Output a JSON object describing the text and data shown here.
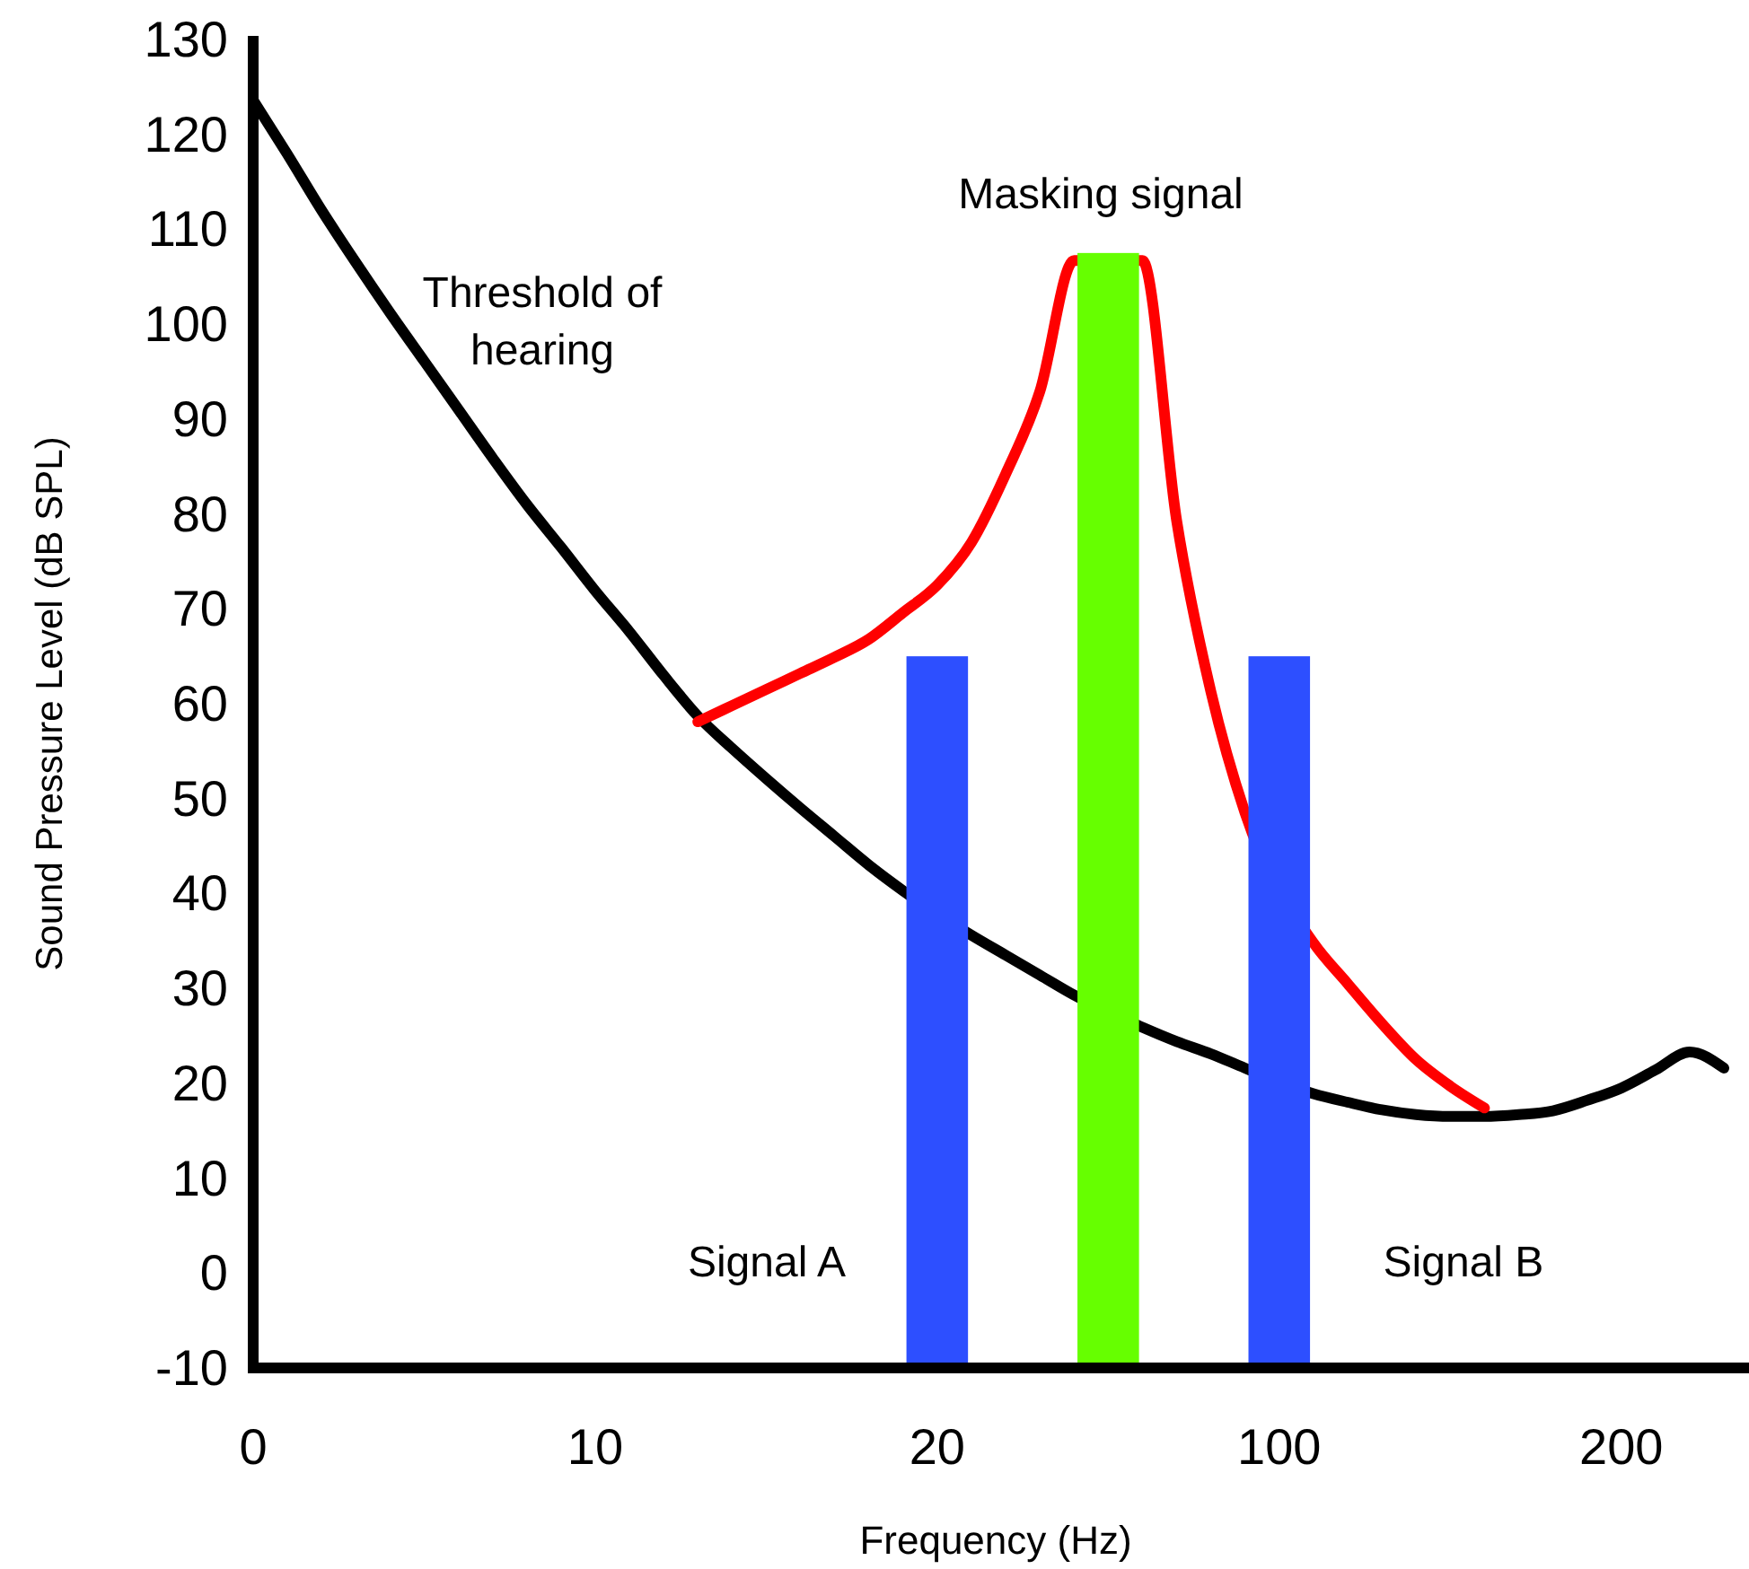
{
  "chart_data": {
    "type": "line",
    "xlabel": "Frequency (Hz)",
    "ylabel": "Sound Pressure Level (dB SPL)",
    "categories": [
      "0",
      null,
      null,
      null,
      null,
      null,
      null,
      null,
      null,
      null,
      "10",
      null,
      null,
      null,
      null,
      null,
      null,
      null,
      null,
      null,
      "20",
      null,
      null,
      null,
      null,
      null,
      null,
      null,
      null,
      null,
      "100",
      null,
      null,
      null,
      null,
      null,
      null,
      null,
      null,
      null,
      "200",
      null,
      null,
      null
    ],
    "ylim": [
      -10,
      130
    ],
    "yticks": [
      -10,
      0,
      10,
      20,
      30,
      40,
      50,
      60,
      70,
      80,
      90,
      100,
      110,
      120,
      130
    ],
    "grid": false,
    "marker": "none",
    "line_style": "solid",
    "series": [
      {
        "type": "bar",
        "color": "#2d4fff",
        "values": [
          null,
          null,
          null,
          null,
          null,
          null,
          null,
          null,
          null,
          null,
          null,
          null,
          null,
          null,
          null,
          null,
          null,
          null,
          null,
          null,
          75,
          null,
          null,
          null,
          null,
          null,
          null,
          null,
          null,
          null,
          75,
          null,
          null,
          null,
          null,
          null,
          null,
          null,
          null,
          null,
          null,
          null,
          null,
          null
        ],
        "base": [
          null,
          null,
          null,
          null,
          null,
          null,
          null,
          null,
          null,
          null,
          null,
          null,
          null,
          null,
          null,
          null,
          null,
          null,
          null,
          null,
          -10,
          null,
          null,
          null,
          null,
          null,
          null,
          null,
          null,
          null,
          -10,
          null,
          null,
          null,
          null,
          null,
          null,
          null,
          null,
          null,
          null,
          null,
          null,
          null
        ]
      },
      {
        "type": "bar",
        "color": "#66ff00",
        "values": [
          null,
          null,
          null,
          null,
          null,
          null,
          null,
          null,
          null,
          null,
          null,
          null,
          null,
          null,
          null,
          null,
          null,
          null,
          null,
          null,
          null,
          null,
          null,
          null,
          null,
          117.5,
          null,
          null,
          null,
          null,
          null,
          null,
          null,
          null,
          null,
          null,
          null,
          null,
          null,
          null,
          null,
          null,
          null,
          null
        ],
        "base": [
          null,
          null,
          null,
          null,
          null,
          null,
          null,
          null,
          null,
          null,
          null,
          null,
          null,
          null,
          null,
          null,
          null,
          null,
          null,
          null,
          null,
          null,
          null,
          null,
          null,
          -10,
          null,
          null,
          null,
          null,
          null,
          null,
          null,
          null,
          null,
          null,
          null,
          null,
          null,
          null,
          null,
          null,
          null,
          null
        ]
      },
      {
        "color": "#000000",
        "values": [
          123.6,
          117.9,
          112,
          106.5,
          101.2,
          96.1,
          91,
          85.9,
          81,
          76.5,
          71.9,
          67.6,
          63,
          58.7,
          55.3,
          52.1,
          49,
          46,
          43,
          40.3,
          null,
          35.6,
          33.5,
          31.4,
          29.3,
          null,
          25.9,
          24.4,
          23.1,
          21.6,
          null,
          18.9,
          18,
          17.2,
          16.7,
          16.5,
          16.5,
          16.7,
          17.1,
          18.2,
          19.5,
          21.4,
          23.3,
          21.6
        ]
      },
      {
        "color": "#ff0000",
        "values": [
          null,
          null,
          null,
          null,
          null,
          null,
          null,
          null,
          null,
          null,
          null,
          null,
          null,
          58.1,
          59.8,
          61.5,
          63.2,
          64.9,
          66.8,
          69.6,
          72.5,
          77,
          84.2,
          92.9,
          106.7,
          null,
          106.7,
          79.3,
          61.3,
          48.5,
          null,
          34.8,
          30.5,
          26.3,
          22.5,
          19.7,
          17.4,
          null,
          null,
          null,
          null,
          null,
          null,
          null
        ]
      }
    ],
    "annotations": [
      "Threshold of\nhearing",
      "Masking signal",
      "Signal A",
      "Signal B"
    ]
  }
}
